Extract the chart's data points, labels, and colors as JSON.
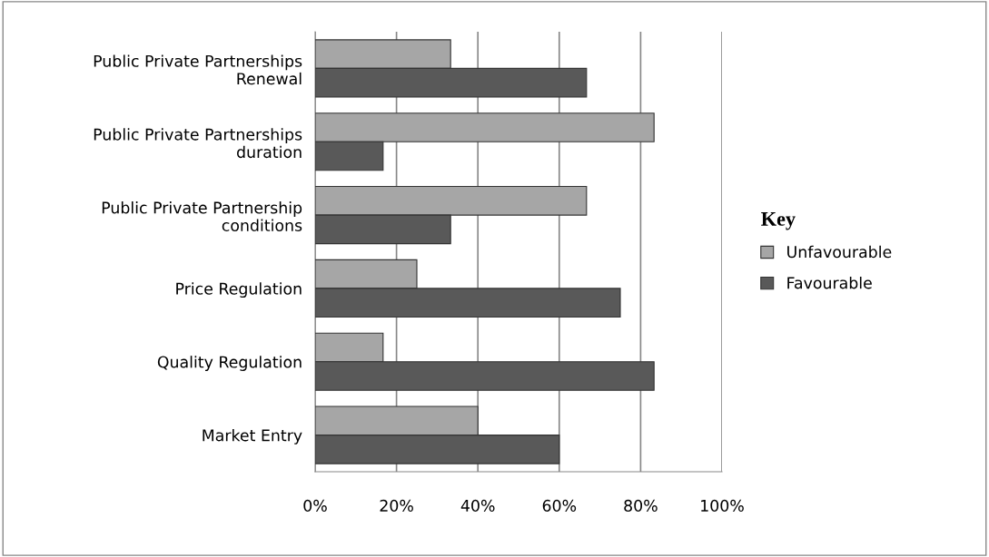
{
  "chart_data": {
    "type": "bar",
    "orientation": "horizontal",
    "categories": [
      "Public Private Partnerships\nRenewal",
      "Public Private Partnerships\nduration",
      "Public Private Partnership\nconditions",
      "Price Regulation",
      "Quality Regulation",
      "Market Entry"
    ],
    "series": [
      {
        "name": "Unfavourable",
        "color": "#a6a6a6",
        "values": [
          33.3,
          83.3,
          66.7,
          25,
          16.7,
          40
        ]
      },
      {
        "name": "Favourable",
        "color": "#595959",
        "values": [
          66.7,
          16.7,
          33.3,
          75,
          83.3,
          60
        ]
      }
    ],
    "xlim": [
      0,
      100
    ],
    "xticks": [
      {
        "value": 0,
        "label": "0%"
      },
      {
        "value": 20,
        "label": "20%"
      },
      {
        "value": 40,
        "label": "40%"
      },
      {
        "value": 60,
        "label": "60%"
      },
      {
        "value": 80,
        "label": "80%"
      },
      {
        "value": 100,
        "label": "100%"
      }
    ],
    "legend_title": "Key",
    "legend": "right",
    "grid": "x"
  }
}
